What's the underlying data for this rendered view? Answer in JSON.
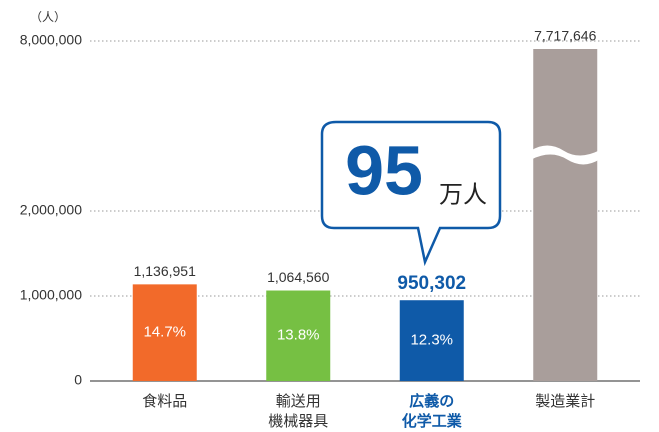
{
  "chart_data": {
    "type": "bar",
    "y_unit_label": "（人）",
    "categories": [
      "食料品",
      "輸送用\n機械器具",
      "広義の\n化学工業",
      "製造業計"
    ],
    "values": [
      1136951,
      1064560,
      950302,
      7717646
    ],
    "value_labels": [
      "1,136,951",
      "1,064,560",
      "950,302",
      "7,717,646"
    ],
    "inner_labels": [
      "14.7%",
      "13.8%",
      "12.3%",
      null
    ],
    "colors": [
      "#f26a2a",
      "#76c043",
      "#0f5aa8",
      "#a99e9b"
    ],
    "ylim": [
      0,
      8000000
    ],
    "yticks": [
      0,
      {
        "value": 1000000,
        "label": "1,000,000"
      },
      {
        "value": 2000000,
        "label": "2,000,000"
      },
      {
        "value": 8000000,
        "label": "8,000,000"
      }
    ],
    "axis_break": true,
    "grid": true,
    "callout": {
      "number": "95",
      "unit": "万人"
    }
  }
}
